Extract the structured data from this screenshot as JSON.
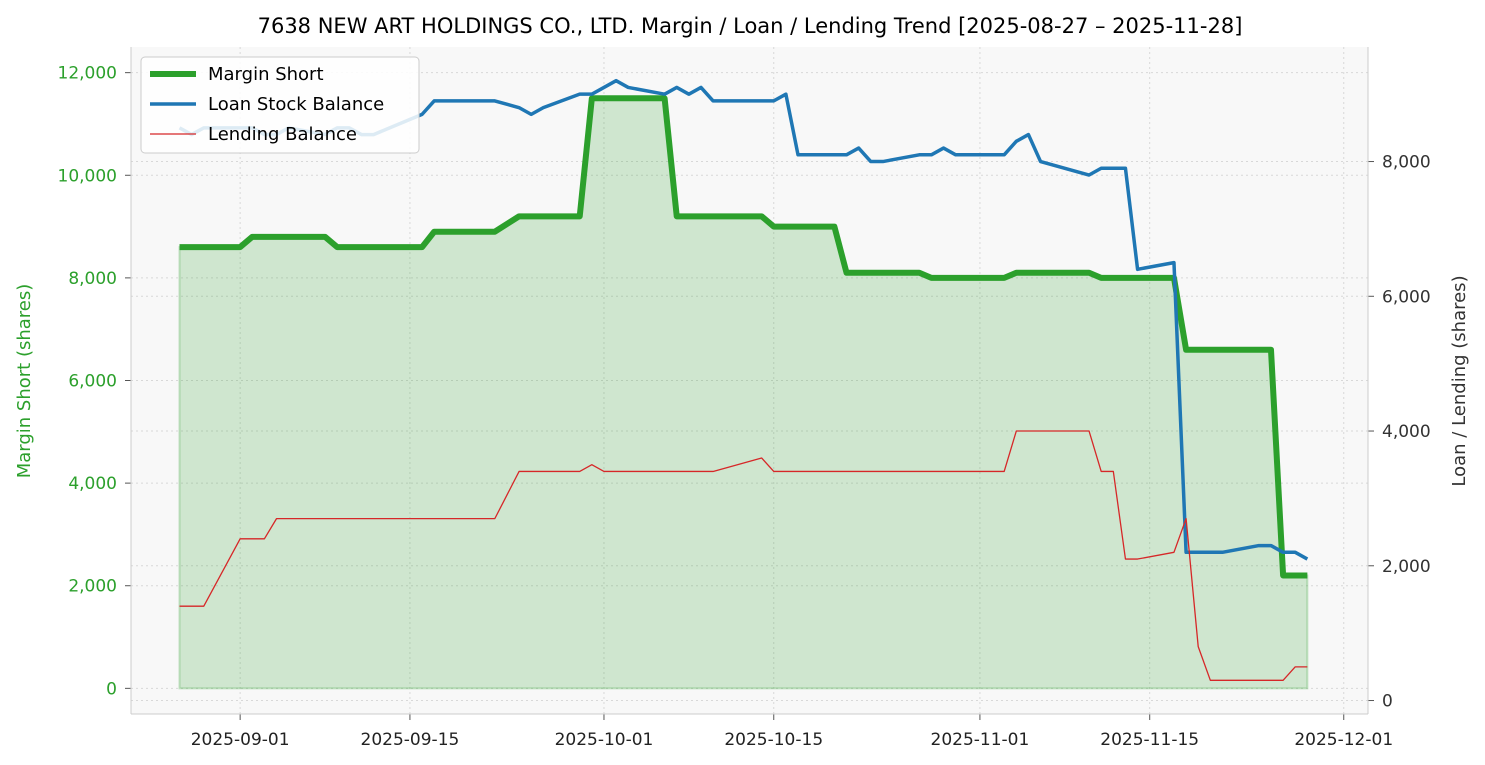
{
  "chart_data": {
    "type": "line",
    "title": "7638 NEW ART HOLDINGS CO., LTD. Margin / Loan / Lending Trend [2025-08-27 – 2025-11-28]",
    "xlabel": "",
    "ylabel_left": "Margin Short (shares)",
    "ylabel_right": "Loan / Lending (shares)",
    "x_ticks": [
      "2025-09-01",
      "2025-09-15",
      "2025-10-01",
      "2025-10-15",
      "2025-11-01",
      "2025-11-15",
      "2025-12-01"
    ],
    "y_left_ticks": [
      "0",
      "2,000",
      "4,000",
      "6,000",
      "8,000",
      "10,000",
      "12,000"
    ],
    "y_right_ticks": [
      "0",
      "2,000",
      "4,000",
      "6,000",
      "8,000"
    ],
    "ylim_left": [
      -500,
      12500
    ],
    "ylim_right": [
      -200,
      9700
    ],
    "xlim": [
      "2025-08-23",
      "2025-12-03"
    ],
    "grid": true,
    "legend_position": "top-left",
    "colors": {
      "margin": "#2ca02c",
      "loan": "#1f77b4",
      "lending": "#d62728",
      "fill": "#2ca02c",
      "plot_bg": "#f8f8f8",
      "left_tick_color": "#2ca02c",
      "right_tick_color": "#333333"
    },
    "series": [
      {
        "name": "Margin Short",
        "axis": "left",
        "style": "thick",
        "points": [
          [
            "2025-08-27",
            8600
          ],
          [
            "2025-08-28",
            8600
          ],
          [
            "2025-08-29",
            8600
          ],
          [
            "2025-09-01",
            8600
          ],
          [
            "2025-09-02",
            8800
          ],
          [
            "2025-09-03",
            8800
          ],
          [
            "2025-09-04",
            8800
          ],
          [
            "2025-09-05",
            8800
          ],
          [
            "2025-09-08",
            8800
          ],
          [
            "2025-09-09",
            8600
          ],
          [
            "2025-09-10",
            8600
          ],
          [
            "2025-09-11",
            8600
          ],
          [
            "2025-09-12",
            8600
          ],
          [
            "2025-09-16",
            8600
          ],
          [
            "2025-09-17",
            8900
          ],
          [
            "2025-09-18",
            8900
          ],
          [
            "2025-09-19",
            8900
          ],
          [
            "2025-09-22",
            8900
          ],
          [
            "2025-09-24",
            9200
          ],
          [
            "2025-09-25",
            9200
          ],
          [
            "2025-09-26",
            9200
          ],
          [
            "2025-09-29",
            9200
          ],
          [
            "2025-09-30",
            11500
          ],
          [
            "2025-10-01",
            11500
          ],
          [
            "2025-10-02",
            11500
          ],
          [
            "2025-10-03",
            11500
          ],
          [
            "2025-10-06",
            11500
          ],
          [
            "2025-10-07",
            9200
          ],
          [
            "2025-10-08",
            9200
          ],
          [
            "2025-10-09",
            9200
          ],
          [
            "2025-10-10",
            9200
          ],
          [
            "2025-10-14",
            9200
          ],
          [
            "2025-10-15",
            9000
          ],
          [
            "2025-10-16",
            9000
          ],
          [
            "2025-10-17",
            9000
          ],
          [
            "2025-10-20",
            9000
          ],
          [
            "2025-10-21",
            8100
          ],
          [
            "2025-10-22",
            8100
          ],
          [
            "2025-10-23",
            8100
          ],
          [
            "2025-10-24",
            8100
          ],
          [
            "2025-10-27",
            8100
          ],
          [
            "2025-10-28",
            8000
          ],
          [
            "2025-10-29",
            8000
          ],
          [
            "2025-10-30",
            8000
          ],
          [
            "2025-10-31",
            8000
          ],
          [
            "2025-11-03",
            8000
          ],
          [
            "2025-11-04",
            8100
          ],
          [
            "2025-11-05",
            8100
          ],
          [
            "2025-11-06",
            8100
          ],
          [
            "2025-11-07",
            8100
          ],
          [
            "2025-11-10",
            8100
          ],
          [
            "2025-11-11",
            8000
          ],
          [
            "2025-11-12",
            8000
          ],
          [
            "2025-11-13",
            8000
          ],
          [
            "2025-11-14",
            8000
          ],
          [
            "2025-11-17",
            8000
          ],
          [
            "2025-11-18",
            6600
          ],
          [
            "2025-11-19",
            6600
          ],
          [
            "2025-11-20",
            6600
          ],
          [
            "2025-11-21",
            6600
          ],
          [
            "2025-11-24",
            6600
          ],
          [
            "2025-11-25",
            6600
          ],
          [
            "2025-11-26",
            2200
          ],
          [
            "2025-11-27",
            2200
          ],
          [
            "2025-11-28",
            2200
          ]
        ]
      },
      {
        "name": "Loan Stock Balance",
        "axis": "right",
        "style": "medium",
        "points": [
          [
            "2025-08-27",
            8500
          ],
          [
            "2025-08-28",
            8400
          ],
          [
            "2025-08-29",
            8500
          ],
          [
            "2025-09-01",
            8500
          ],
          [
            "2025-09-02",
            8500
          ],
          [
            "2025-09-03",
            8400
          ],
          [
            "2025-09-04",
            8400
          ],
          [
            "2025-09-05",
            8500
          ],
          [
            "2025-09-08",
            8400
          ],
          [
            "2025-09-09",
            8500
          ],
          [
            "2025-09-10",
            8500
          ],
          [
            "2025-09-11",
            8400
          ],
          [
            "2025-09-12",
            8400
          ],
          [
            "2025-09-16",
            8700
          ],
          [
            "2025-09-17",
            8900
          ],
          [
            "2025-09-18",
            8900
          ],
          [
            "2025-09-19",
            8900
          ],
          [
            "2025-09-22",
            8900
          ],
          [
            "2025-09-24",
            8800
          ],
          [
            "2025-09-25",
            8700
          ],
          [
            "2025-09-26",
            8800
          ],
          [
            "2025-09-29",
            9000
          ],
          [
            "2025-09-30",
            9000
          ],
          [
            "2025-10-01",
            9100
          ],
          [
            "2025-10-02",
            9200
          ],
          [
            "2025-10-03",
            9100
          ],
          [
            "2025-10-06",
            9000
          ],
          [
            "2025-10-07",
            9100
          ],
          [
            "2025-10-08",
            9000
          ],
          [
            "2025-10-09",
            9100
          ],
          [
            "2025-10-10",
            8900
          ],
          [
            "2025-10-14",
            8900
          ],
          [
            "2025-10-15",
            8900
          ],
          [
            "2025-10-16",
            9000
          ],
          [
            "2025-10-17",
            8100
          ],
          [
            "2025-10-20",
            8100
          ],
          [
            "2025-10-21",
            8100
          ],
          [
            "2025-10-22",
            8200
          ],
          [
            "2025-10-23",
            8000
          ],
          [
            "2025-10-24",
            8000
          ],
          [
            "2025-10-27",
            8100
          ],
          [
            "2025-10-28",
            8100
          ],
          [
            "2025-10-29",
            8200
          ],
          [
            "2025-10-30",
            8100
          ],
          [
            "2025-10-31",
            8100
          ],
          [
            "2025-11-03",
            8100
          ],
          [
            "2025-11-04",
            8300
          ],
          [
            "2025-11-05",
            8400
          ],
          [
            "2025-11-06",
            8000
          ],
          [
            "2025-11-10",
            7800
          ],
          [
            "2025-11-11",
            7900
          ],
          [
            "2025-11-12",
            7900
          ],
          [
            "2025-11-13",
            7900
          ],
          [
            "2025-11-14",
            6400
          ],
          [
            "2025-11-17",
            6500
          ],
          [
            "2025-11-18",
            2200
          ],
          [
            "2025-11-19",
            2200
          ],
          [
            "2025-11-20",
            2200
          ],
          [
            "2025-11-21",
            2200
          ],
          [
            "2025-11-24",
            2300
          ],
          [
            "2025-11-25",
            2300
          ],
          [
            "2025-11-26",
            2200
          ],
          [
            "2025-11-27",
            2200
          ],
          [
            "2025-11-28",
            2100
          ]
        ]
      },
      {
        "name": "Lending Balance",
        "axis": "right",
        "style": "thin",
        "points": [
          [
            "2025-08-27",
            1400
          ],
          [
            "2025-08-28",
            1400
          ],
          [
            "2025-08-29",
            1400
          ],
          [
            "2025-09-01",
            2400
          ],
          [
            "2025-09-02",
            2400
          ],
          [
            "2025-09-03",
            2400
          ],
          [
            "2025-09-04",
            2700
          ],
          [
            "2025-09-05",
            2700
          ],
          [
            "2025-09-08",
            2700
          ],
          [
            "2025-09-09",
            2700
          ],
          [
            "2025-09-10",
            2700
          ],
          [
            "2025-09-11",
            2700
          ],
          [
            "2025-09-12",
            2700
          ],
          [
            "2025-09-16",
            2700
          ],
          [
            "2025-09-17",
            2700
          ],
          [
            "2025-09-18",
            2700
          ],
          [
            "2025-09-19",
            2700
          ],
          [
            "2025-09-22",
            2700
          ],
          [
            "2025-09-24",
            3400
          ],
          [
            "2025-09-25",
            3400
          ],
          [
            "2025-09-26",
            3400
          ],
          [
            "2025-09-29",
            3400
          ],
          [
            "2025-09-30",
            3500
          ],
          [
            "2025-10-01",
            3400
          ],
          [
            "2025-10-02",
            3400
          ],
          [
            "2025-10-03",
            3400
          ],
          [
            "2025-10-06",
            3400
          ],
          [
            "2025-10-07",
            3400
          ],
          [
            "2025-10-08",
            3400
          ],
          [
            "2025-10-09",
            3400
          ],
          [
            "2025-10-10",
            3400
          ],
          [
            "2025-10-14",
            3600
          ],
          [
            "2025-10-15",
            3400
          ],
          [
            "2025-10-16",
            3400
          ],
          [
            "2025-10-17",
            3400
          ],
          [
            "2025-10-20",
            3400
          ],
          [
            "2025-10-21",
            3400
          ],
          [
            "2025-10-22",
            3400
          ],
          [
            "2025-10-23",
            3400
          ],
          [
            "2025-10-24",
            3400
          ],
          [
            "2025-10-27",
            3400
          ],
          [
            "2025-10-28",
            3400
          ],
          [
            "2025-10-29",
            3400
          ],
          [
            "2025-10-30",
            3400
          ],
          [
            "2025-10-31",
            3400
          ],
          [
            "2025-11-03",
            3400
          ],
          [
            "2025-11-04",
            4000
          ],
          [
            "2025-11-05",
            4000
          ],
          [
            "2025-11-06",
            4000
          ],
          [
            "2025-11-07",
            4000
          ],
          [
            "2025-11-10",
            4000
          ],
          [
            "2025-11-11",
            3400
          ],
          [
            "2025-11-12",
            3400
          ],
          [
            "2025-11-13",
            2100
          ],
          [
            "2025-11-14",
            2100
          ],
          [
            "2025-11-17",
            2200
          ],
          [
            "2025-11-18",
            2700
          ],
          [
            "2025-11-19",
            800
          ],
          [
            "2025-11-20",
            300
          ],
          [
            "2025-11-21",
            300
          ],
          [
            "2025-11-24",
            300
          ],
          [
            "2025-11-25",
            300
          ],
          [
            "2025-11-26",
            300
          ],
          [
            "2025-11-27",
            500
          ],
          [
            "2025-11-28",
            500
          ]
        ]
      }
    ]
  }
}
